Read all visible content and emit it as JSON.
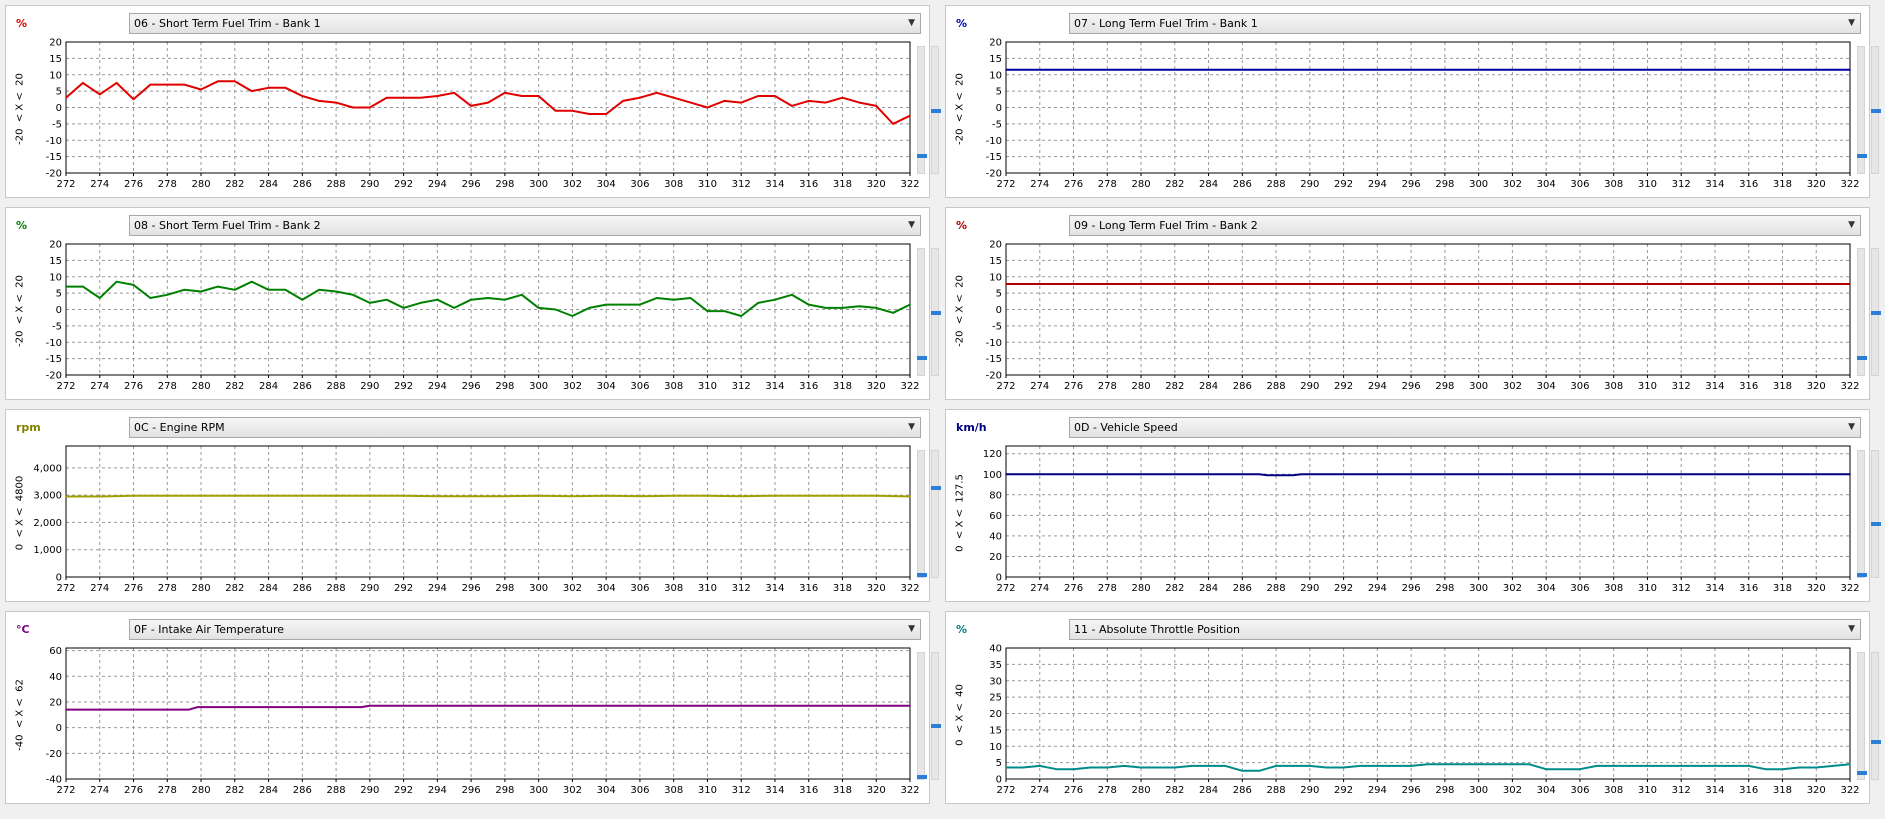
{
  "chart_data": [
    {
      "type": "line",
      "title": "06 - Short Term Fuel Trim - Bank 1",
      "unit": "%",
      "unit_color": "#e00000",
      "line_color": "#e00000",
      "range_label": "-20  < X <  20",
      "ylim": [
        -20,
        20
      ],
      "yticks": [
        -20,
        -15,
        -10,
        -5,
        0,
        5,
        10,
        15,
        20
      ],
      "ytick_labels": [
        "-20",
        "-15",
        "-10",
        "-5",
        "0",
        "5",
        "10",
        "15",
        "20"
      ],
      "xlim": [
        272,
        322
      ],
      "xticks": [
        272,
        274,
        276,
        278,
        280,
        282,
        284,
        286,
        288,
        290,
        292,
        294,
        296,
        298,
        300,
        302,
        304,
        306,
        308,
        310,
        312,
        314,
        316,
        318,
        320,
        322
      ],
      "xtick_labels": [
        "272",
        "274",
        "276",
        "278",
        "280",
        "282",
        "284",
        "286",
        "288",
        "290",
        "292",
        "294",
        "296",
        "298",
        "300",
        "302",
        "304",
        "306",
        "308",
        "310",
        "312",
        "314",
        "316",
        "318",
        "320",
        "322"
      ],
      "x": [
        272,
        273,
        274,
        275,
        276,
        277,
        278,
        279,
        280,
        281,
        282,
        283,
        284,
        285,
        286,
        287,
        288,
        289,
        290,
        291,
        292,
        293,
        294,
        295,
        296,
        297,
        298,
        299,
        300,
        301,
        302,
        303,
        304,
        305,
        306,
        307,
        308,
        309,
        310,
        311,
        312,
        313,
        314,
        315,
        316,
        317,
        318,
        319,
        320,
        321,
        322
      ],
      "y": [
        3,
        7.5,
        4,
        7.5,
        2.5,
        7,
        7,
        7,
        5.5,
        8,
        8,
        5,
        6,
        6,
        3.5,
        2,
        1.5,
        0,
        0,
        3,
        3,
        3,
        3.5,
        4.5,
        0.5,
        1.5,
        4.5,
        3.5,
        3.5,
        -1,
        -1,
        -2,
        -2,
        2,
        3,
        4.5,
        3,
        1.5,
        0,
        2,
        1.5,
        3.5,
        3.5,
        0.5,
        2,
        1.5,
        3,
        1.5,
        0.5,
        -5,
        -2.5
      ],
      "slider": [
        0.5,
        0.14
      ]
    },
    {
      "type": "line",
      "title": "07 - Long Term Fuel Trim - Bank 1",
      "unit": "%",
      "unit_color": "#0000c0",
      "line_color": "#0000a0",
      "range_label": "-20  < X <  20",
      "ylim": [
        -20,
        20
      ],
      "yticks": [
        -20,
        -15,
        -10,
        -5,
        0,
        5,
        10,
        15,
        20
      ],
      "ytick_labels": [
        "-20",
        "-15",
        "-10",
        "-5",
        "0",
        "5",
        "10",
        "15",
        "20"
      ],
      "xlim": [
        272,
        322
      ],
      "xticks": [
        272,
        274,
        276,
        278,
        280,
        282,
        284,
        286,
        288,
        290,
        292,
        294,
        296,
        298,
        300,
        302,
        304,
        306,
        308,
        310,
        312,
        314,
        316,
        318,
        320,
        322
      ],
      "xtick_labels": [
        "272",
        "274",
        "276",
        "278",
        "280",
        "282",
        "284",
        "286",
        "288",
        "290",
        "292",
        "294",
        "296",
        "298",
        "300",
        "302",
        "304",
        "306",
        "308",
        "310",
        "312",
        "314",
        "316",
        "318",
        "320",
        "322"
      ],
      "x": [
        272,
        322
      ],
      "y": [
        11.5,
        11.5
      ],
      "slider": [
        0.5,
        0.14
      ]
    },
    {
      "type": "line",
      "title": "08 - Short Term Fuel Trim - Bank 2",
      "unit": "%",
      "unit_color": "#008000",
      "line_color": "#008000",
      "range_label": "-20  < X <  20",
      "ylim": [
        -20,
        20
      ],
      "yticks": [
        -20,
        -15,
        -10,
        -5,
        0,
        5,
        10,
        15,
        20
      ],
      "ytick_labels": [
        "-20",
        "-15",
        "-10",
        "-5",
        "0",
        "5",
        "10",
        "15",
        "20"
      ],
      "xlim": [
        272,
        322
      ],
      "xticks": [
        272,
        274,
        276,
        278,
        280,
        282,
        284,
        286,
        288,
        290,
        292,
        294,
        296,
        298,
        300,
        302,
        304,
        306,
        308,
        310,
        312,
        314,
        316,
        318,
        320,
        322
      ],
      "xtick_labels": [
        "272",
        "274",
        "276",
        "278",
        "280",
        "282",
        "284",
        "286",
        "288",
        "290",
        "292",
        "294",
        "296",
        "298",
        "300",
        "302",
        "304",
        "306",
        "308",
        "310",
        "312",
        "314",
        "316",
        "318",
        "320",
        "322"
      ],
      "x": [
        272,
        273,
        274,
        275,
        276,
        277,
        278,
        279,
        280,
        281,
        282,
        283,
        284,
        285,
        286,
        287,
        288,
        289,
        290,
        291,
        292,
        293,
        294,
        295,
        296,
        297,
        298,
        299,
        300,
        301,
        302,
        303,
        304,
        305,
        306,
        307,
        308,
        309,
        310,
        311,
        312,
        313,
        314,
        315,
        316,
        317,
        318,
        319,
        320,
        321,
        322
      ],
      "y": [
        7,
        7,
        3.5,
        8.5,
        7.5,
        3.5,
        4.5,
        6,
        5.5,
        7,
        6,
        8.5,
        6,
        6,
        3,
        6,
        5.5,
        4.5,
        2,
        3,
        0.5,
        2,
        3,
        0.5,
        3,
        3.5,
        3,
        4.5,
        0.5,
        0,
        -2,
        0.5,
        1.5,
        1.5,
        1.5,
        3.5,
        3,
        3.5,
        -0.5,
        -0.5,
        -2,
        2,
        3,
        4.5,
        1.5,
        0.5,
        0.5,
        1,
        0.5,
        -1,
        1.5
      ],
      "slider": [
        0.5,
        0.14
      ]
    },
    {
      "type": "line",
      "title": "09 - Long Term Fuel Trim - Bank 2",
      "unit": "%",
      "unit_color": "#b00000",
      "line_color": "#b00000",
      "range_label": "-20  < X <  20",
      "ylim": [
        -20,
        20
      ],
      "yticks": [
        -20,
        -15,
        -10,
        -5,
        0,
        5,
        10,
        15,
        20
      ],
      "ytick_labels": [
        "-20",
        "-15",
        "-10",
        "-5",
        "0",
        "5",
        "10",
        "15",
        "20"
      ],
      "xlim": [
        272,
        322
      ],
      "xticks": [
        272,
        274,
        276,
        278,
        280,
        282,
        284,
        286,
        288,
        290,
        292,
        294,
        296,
        298,
        300,
        302,
        304,
        306,
        308,
        310,
        312,
        314,
        316,
        318,
        320,
        322
      ],
      "xtick_labels": [
        "272",
        "274",
        "276",
        "278",
        "280",
        "282",
        "284",
        "286",
        "288",
        "290",
        "292",
        "294",
        "296",
        "298",
        "300",
        "302",
        "304",
        "306",
        "308",
        "310",
        "312",
        "314",
        "316",
        "318",
        "320",
        "322"
      ],
      "x": [
        272,
        322
      ],
      "y": [
        7.8,
        7.8
      ],
      "slider": [
        0.5,
        0.14
      ]
    },
    {
      "type": "line",
      "title": "0C - Engine RPM",
      "unit": "rpm",
      "unit_color": "#808000",
      "line_color": "#a0a000",
      "range_label": "0  < X <  4800",
      "ylim": [
        0,
        4800
      ],
      "yticks": [
        0,
        1000,
        2000,
        3000,
        4000
      ],
      "ytick_labels": [
        "0",
        "1,000",
        "2,000",
        "3,000",
        "4,000"
      ],
      "xlim": [
        272,
        322
      ],
      "xticks": [
        272,
        274,
        276,
        278,
        280,
        282,
        284,
        286,
        288,
        290,
        292,
        294,
        296,
        298,
        300,
        302,
        304,
        306,
        308,
        310,
        312,
        314,
        316,
        318,
        320,
        322
      ],
      "xtick_labels": [
        "272",
        "274",
        "276",
        "278",
        "280",
        "282",
        "284",
        "286",
        "288",
        "290",
        "292",
        "294",
        "296",
        "298",
        "300",
        "302",
        "304",
        "306",
        "308",
        "310",
        "312",
        "314",
        "316",
        "318",
        "320",
        "322"
      ],
      "x": [
        272,
        274,
        276,
        278,
        280,
        282,
        284,
        286,
        288,
        290,
        292,
        294,
        296,
        298,
        300,
        302,
        304,
        306,
        308,
        310,
        312,
        314,
        316,
        318,
        320,
        322
      ],
      "y": [
        2950,
        2950,
        2980,
        2980,
        2980,
        2980,
        2980,
        2980,
        2980,
        2980,
        2980,
        2960,
        2960,
        2960,
        2980,
        2960,
        2980,
        2960,
        2980,
        2980,
        2960,
        2980,
        2980,
        2980,
        2980,
        2950
      ],
      "slider": [
        0.72,
        0.02
      ]
    },
    {
      "type": "line",
      "title": "0D - Vehicle Speed",
      "unit": "km/h",
      "unit_color": "#000080",
      "line_color": "#000080",
      "range_label": "0  < X <  127.5",
      "ylim": [
        0,
        127.5
      ],
      "yticks": [
        0,
        20,
        40,
        60,
        80,
        100,
        120
      ],
      "ytick_labels": [
        "0",
        "20",
        "40",
        "60",
        "80",
        "100",
        "120"
      ],
      "xlim": [
        272,
        322
      ],
      "xticks": [
        272,
        274,
        276,
        278,
        280,
        282,
        284,
        286,
        288,
        290,
        292,
        294,
        296,
        298,
        300,
        302,
        304,
        306,
        308,
        310,
        312,
        314,
        316,
        318,
        320,
        322
      ],
      "xtick_labels": [
        "272",
        "274",
        "276",
        "278",
        "280",
        "282",
        "284",
        "286",
        "288",
        "290",
        "292",
        "294",
        "296",
        "298",
        "300",
        "302",
        "304",
        "306",
        "308",
        "310",
        "312",
        "314",
        "316",
        "318",
        "320",
        "322"
      ],
      "x": [
        272,
        287,
        287.5,
        289,
        289.5,
        322
      ],
      "y": [
        100,
        100,
        99,
        99,
        100,
        100
      ],
      "slider": [
        0.43,
        0.02
      ]
    },
    {
      "type": "line",
      "title": "0F - Intake Air Temperature",
      "unit": "°C",
      "unit_color": "#800080",
      "line_color": "#800080",
      "range_label": "-40  < X <  62",
      "ylim": [
        -40,
        62
      ],
      "yticks": [
        -40,
        -20,
        0,
        20,
        40,
        60
      ],
      "ytick_labels": [
        "-40",
        "-20",
        "0",
        "20",
        "40",
        "60"
      ],
      "xlim": [
        272,
        322
      ],
      "xticks": [
        272,
        274,
        276,
        278,
        280,
        282,
        284,
        286,
        288,
        290,
        292,
        294,
        296,
        298,
        300,
        302,
        304,
        306,
        308,
        310,
        312,
        314,
        316,
        318,
        320,
        322
      ],
      "xtick_labels": [
        "272",
        "274",
        "276",
        "278",
        "280",
        "282",
        "284",
        "286",
        "288",
        "290",
        "292",
        "294",
        "296",
        "298",
        "300",
        "302",
        "304",
        "306",
        "308",
        "310",
        "312",
        "314",
        "316",
        "318",
        "320",
        "322"
      ],
      "x": [
        272,
        279.3,
        279.8,
        289.5,
        290,
        322
      ],
      "y": [
        14,
        14,
        16,
        16,
        17,
        17
      ],
      "slider": [
        0.43,
        0.02
      ]
    },
    {
      "type": "line",
      "title": "11 - Absolute Throttle Position",
      "unit": "%",
      "unit_color": "#008080",
      "line_color": "#008b8b",
      "range_label": "0  < X <  40",
      "ylim": [
        0,
        40
      ],
      "yticks": [
        0,
        5,
        10,
        15,
        20,
        25,
        30,
        35,
        40
      ],
      "ytick_labels": [
        "0",
        "5",
        "10",
        "15",
        "20",
        "25",
        "30",
        "35",
        "40"
      ],
      "xlim": [
        272,
        322
      ],
      "xticks": [
        272,
        274,
        276,
        278,
        280,
        282,
        284,
        286,
        288,
        290,
        292,
        294,
        296,
        298,
        300,
        302,
        304,
        306,
        308,
        310,
        312,
        314,
        316,
        318,
        320,
        322
      ],
      "xtick_labels": [
        "272",
        "274",
        "276",
        "278",
        "280",
        "282",
        "284",
        "286",
        "288",
        "290",
        "292",
        "294",
        "296",
        "298",
        "300",
        "302",
        "304",
        "306",
        "308",
        "310",
        "312",
        "314",
        "316",
        "318",
        "320",
        "322"
      ],
      "x": [
        272,
        273,
        274,
        275,
        276,
        277,
        278,
        279,
        280,
        281,
        282,
        283,
        284,
        285,
        286,
        287,
        288,
        289,
        290,
        291,
        292,
        293,
        294,
        295,
        296,
        297,
        298,
        299,
        300,
        301,
        302,
        303,
        304,
        305,
        306,
        307,
        308,
        309,
        310,
        311,
        312,
        313,
        314,
        315,
        316,
        317,
        318,
        319,
        320,
        321,
        322
      ],
      "y": [
        3.5,
        3.5,
        4,
        3,
        3,
        3.5,
        3.5,
        4,
        3.5,
        3.5,
        3.5,
        4,
        4,
        4,
        2.5,
        2.5,
        4,
        4,
        4,
        3.5,
        3.5,
        4,
        4,
        4,
        4,
        4.5,
        4.5,
        4.5,
        4.5,
        4.5,
        4.5,
        4.5,
        3,
        3,
        3,
        4,
        4,
        4,
        4,
        4,
        4,
        4,
        4,
        4,
        4,
        3,
        3,
        3.5,
        3.5,
        4,
        4.5
      ],
      "slider": [
        0.3,
        0.05
      ]
    }
  ]
}
